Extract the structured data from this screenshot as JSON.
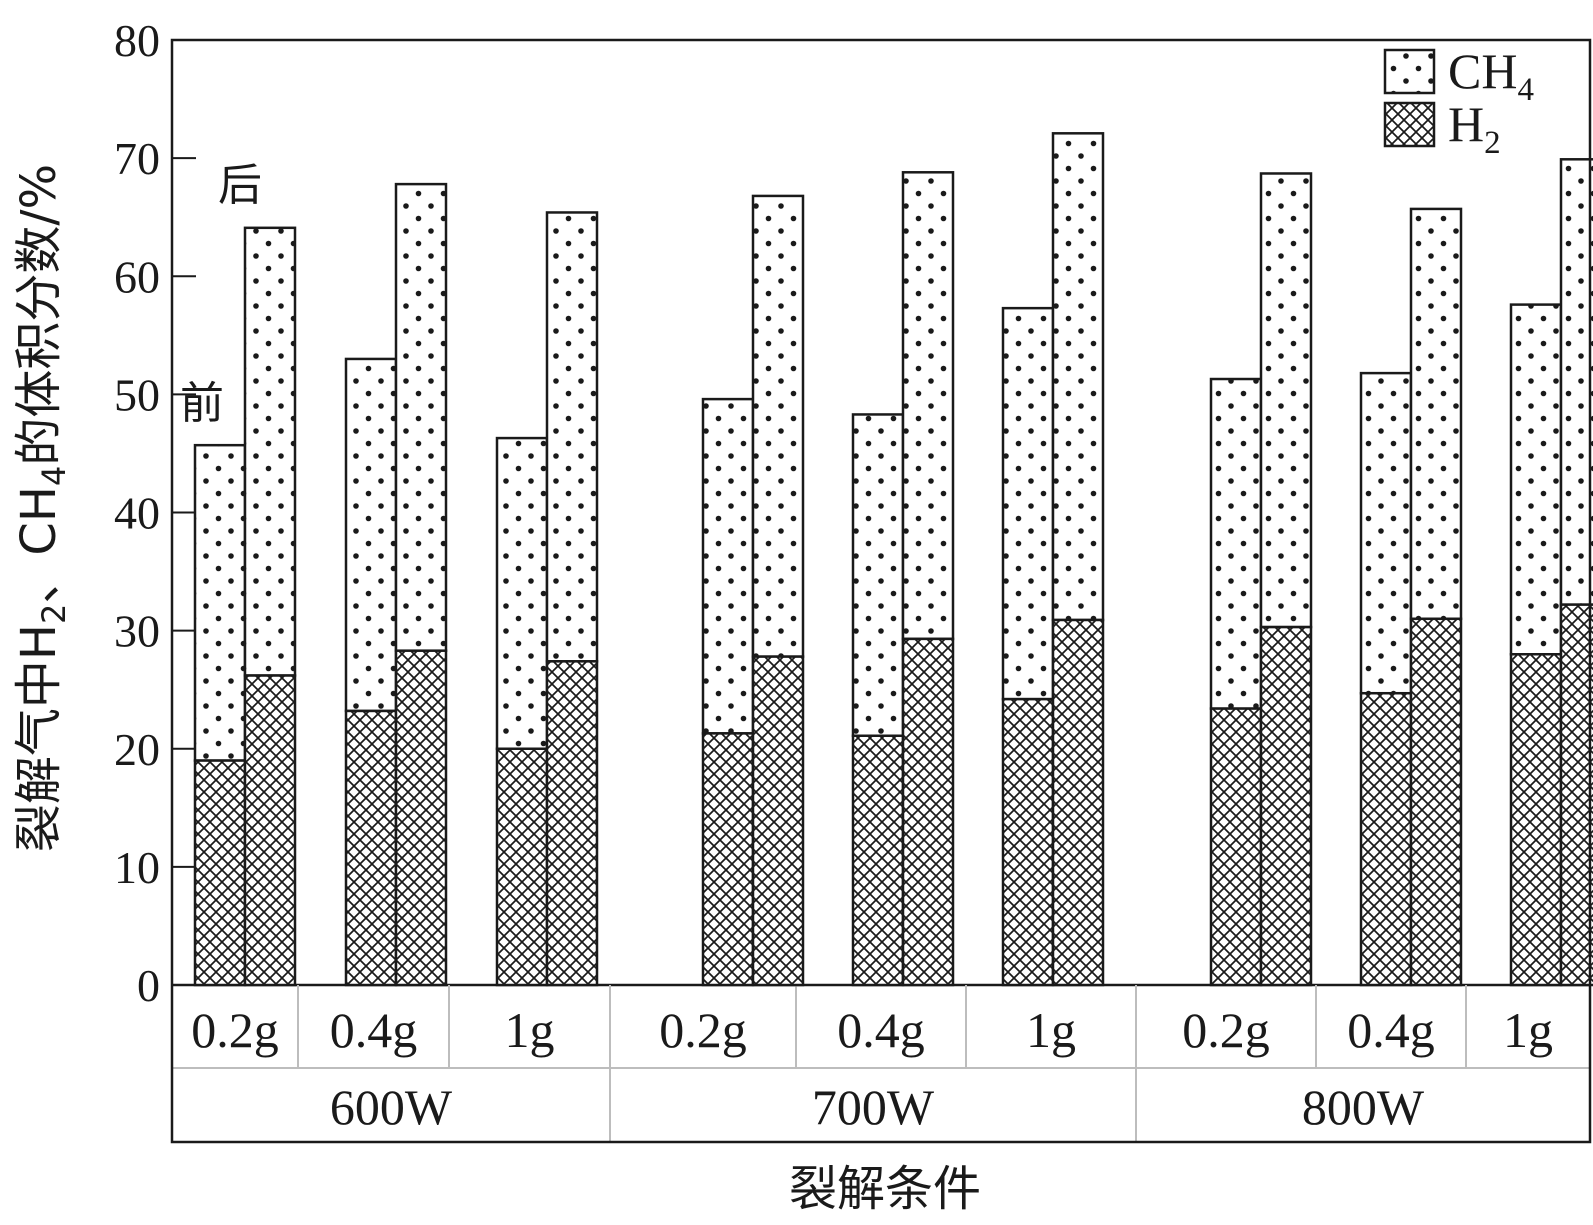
{
  "chart_data": {
    "type": "bar",
    "stacked": true,
    "paired": true,
    "ylabel": {
      "pre": "裂解气中H",
      "sub1": "2",
      "mid": "、CH",
      "sub2": "4",
      "post": "的体积分数/%"
    },
    "xlabel": "裂解条件",
    "ylim": [
      0,
      80
    ],
    "yticks": [
      0,
      10,
      20,
      30,
      40,
      50,
      60,
      70,
      80
    ],
    "groups": [
      "600W",
      "700W",
      "800W"
    ],
    "categories": [
      "0.2g",
      "0.4g",
      "1g",
      "0.2g",
      "0.4g",
      "1g",
      "0.2g",
      "0.4g",
      "1g"
    ],
    "pair_labels": [
      "前",
      "后"
    ],
    "legend": [
      {
        "key": "ch4",
        "main": "CH",
        "sub": "4",
        "pattern": "dots"
      },
      {
        "key": "h2",
        "main": "H",
        "sub": "2",
        "pattern": "crosshatch"
      }
    ],
    "legend_position": "top-right",
    "series": [
      {
        "key": "h2_before",
        "stack": "before",
        "component": "h2",
        "values": [
          19,
          23.2,
          20,
          21.3,
          21.1,
          24.2,
          23.4,
          24.7,
          28.0
        ]
      },
      {
        "key": "total_before",
        "stack": "before",
        "component": "total",
        "values": [
          45.7,
          53.0,
          46.3,
          49.6,
          48.3,
          57.3,
          51.3,
          51.8,
          57.6
        ]
      },
      {
        "key": "h2_after",
        "stack": "after",
        "component": "h2",
        "values": [
          26.2,
          28.3,
          27.4,
          27.8,
          29.3,
          30.9,
          30.3,
          31.0,
          32.2
        ]
      },
      {
        "key": "total_after",
        "stack": "after",
        "component": "total",
        "values": [
          64.1,
          67.8,
          65.4,
          66.8,
          68.8,
          72.1,
          68.7,
          65.7,
          69.9
        ]
      }
    ]
  }
}
